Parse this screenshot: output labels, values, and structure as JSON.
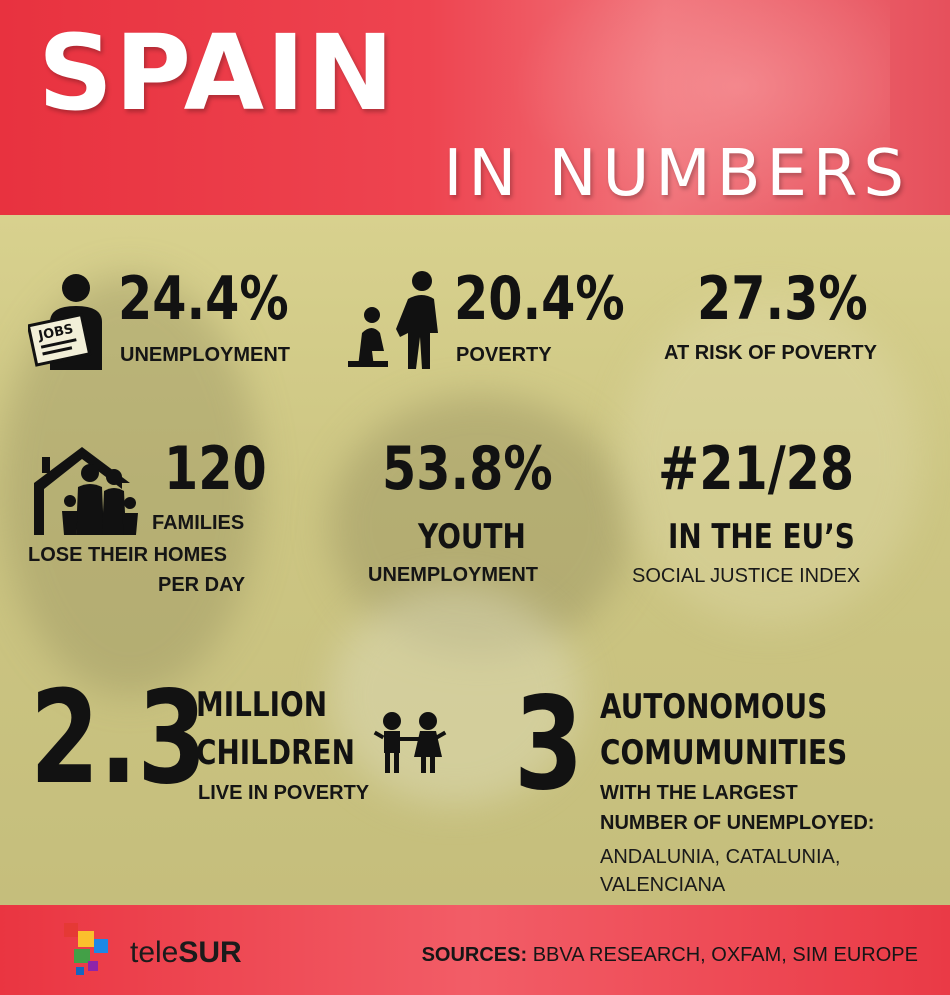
{
  "header": {
    "title_main": "SPAIN",
    "title_sub": "IN NUMBERS"
  },
  "stats": {
    "unemployment": {
      "value": "24.4%",
      "label": "UNEMPLOYMENT",
      "icon": "jobs-sign-person-icon"
    },
    "poverty": {
      "value": "20.4%",
      "label": "POVERTY",
      "icon": "poverty-people-icon"
    },
    "risk": {
      "value": "27.3%",
      "label": "AT RISK OF POVERTY"
    },
    "homes": {
      "value": "120",
      "label1": "FAMILIES",
      "label2": "LOSE THEIR HOMES",
      "label3": "PER DAY",
      "icon": "house-family-icon"
    },
    "youth": {
      "value": "53.8%",
      "label1": "YOUTH",
      "label2": "UNEMPLOYMENT"
    },
    "justice": {
      "value": "#21/28",
      "label1": "IN THE EU’S",
      "label2": "SOCIAL JUSTICE INDEX"
    },
    "children": {
      "value": "2.3",
      "label1": "MILLION",
      "label2": "CHILDREN",
      "label3": "LIVE IN POVERTY",
      "icon": "children-icon"
    },
    "communities": {
      "value": "3",
      "label1": "AUTONOMOUS",
      "label2": "COMUMUNITIES",
      "label3": "WITH THE LARGEST",
      "label4": "NUMBER OF UNEMPLOYED:",
      "label5": "ANDALUNIA, CATALUNIA,",
      "label6": "VALENCIANA"
    }
  },
  "footer": {
    "brand_light": "tele",
    "brand_bold": "SUR",
    "sources_label": "SOURCES:",
    "sources_text": " BBVA RESEARCH, OXFAM, SIM EUROPE",
    "logo_colors": [
      "#e53935",
      "#fbc02d",
      "#43a047",
      "#1e88e5",
      "#8e24aa"
    ]
  }
}
